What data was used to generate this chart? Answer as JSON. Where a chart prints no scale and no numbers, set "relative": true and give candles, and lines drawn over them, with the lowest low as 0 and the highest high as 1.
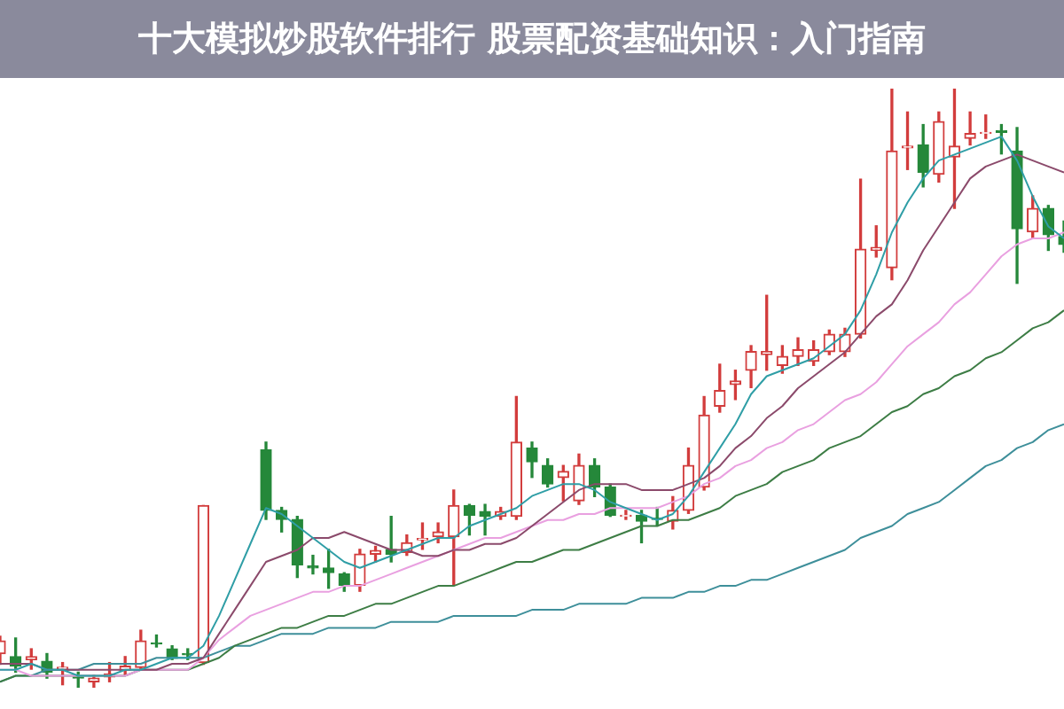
{
  "chart_data": {
    "type": "candlestick",
    "title": "十大模拟炒股软件排行 股票配资基础知识：入门指南",
    "relative": true,
    "categories": [
      null,
      null,
      null,
      null,
      null,
      null,
      null,
      null,
      null,
      null,
      null,
      null,
      null,
      null,
      null,
      null,
      null,
      null,
      null,
      null,
      null,
      null,
      null,
      null,
      null,
      null,
      null,
      null,
      null,
      null,
      null,
      null,
      null,
      null,
      null,
      null,
      null,
      null,
      null,
      null,
      null,
      null,
      null,
      null,
      null,
      null,
      null,
      null,
      null,
      null,
      null,
      null,
      null,
      null,
      null,
      null,
      null,
      null,
      null,
      null,
      null,
      null,
      null,
      null,
      null,
      null,
      null,
      null,
      null
    ],
    "ohlc": [
      [
        0.057,
        0.086,
        0.039,
        0.078
      ],
      [
        0.052,
        0.083,
        0.026,
        0.036
      ],
      [
        0.047,
        0.065,
        0.031,
        0.052
      ],
      [
        0.044,
        0.057,
        0.016,
        0.026
      ],
      [
        0.031,
        0.042,
        0.005,
        0.034
      ],
      [
        0.018,
        0.026,
        0,
        0.016
      ],
      [
        0.01,
        0.021,
        0,
        0.016
      ],
      [
        0.018,
        0.042,
        0.01,
        0.023
      ],
      [
        0.029,
        0.052,
        0.021,
        0.036
      ],
      [
        0.034,
        0.096,
        0.031,
        0.078
      ],
      [
        0.075,
        0.088,
        0.068,
        0.073
      ],
      [
        0.065,
        0.07,
        0.047,
        0.049
      ],
      [
        0.057,
        0.065,
        0.047,
        0.055
      ],
      [
        0.042,
        0.304,
        0.039,
        0.304
      ],
      null,
      null,
      null,
      [
        0.397,
        0.41,
        0.281,
        0.296
      ],
      [
        0.296,
        0.301,
        0.26,
        0.281
      ],
      [
        0.281,
        0.286,
        0.184,
        0.205
      ],
      [
        0.203,
        0.221,
        0.19,
        0.2
      ],
      [
        0.2,
        0.231,
        0.166,
        0.192
      ],
      [
        0.19,
        0.192,
        0.161,
        0.171
      ],
      [
        0.171,
        0.231,
        0.161,
        0.223
      ],
      [
        0.223,
        0.236,
        0.21,
        0.229
      ],
      [
        0.231,
        0.286,
        0.21,
        0.223
      ],
      [
        0.226,
        0.255,
        0.221,
        0.242
      ],
      [
        0.247,
        0.275,
        0.231,
        0.249
      ],
      [
        0.252,
        0.275,
        0.242,
        0.26
      ],
      [
        0.252,
        0.33,
        0.171,
        0.304
      ],
      [
        0.304,
        0.306,
        0.255,
        0.288
      ],
      [
        0.294,
        0.306,
        0.255,
        0.286
      ],
      [
        0.286,
        0.301,
        0.281,
        0.294
      ],
      [
        0.286,
        0.486,
        0.281,
        0.41
      ],
      [
        0.4,
        0.41,
        0.351,
        0.377
      ],
      [
        0.371,
        0.382,
        0.335,
        0.34
      ],
      [
        0.351,
        0.371,
        0.312,
        0.361
      ],
      [
        0.312,
        0.39,
        0.306,
        0.371
      ],
      [
        0.371,
        0.382,
        0.319,
        0.335
      ],
      [
        0.335,
        0.34,
        0.286,
        0.288
      ],
      [
        0.286,
        0.296,
        0.281,
        0.288
      ],
      [
        0.288,
        0.296,
        0.242,
        0.278
      ],
      [
        0.283,
        0.301,
        0.27,
        0.281
      ],
      [
        0.278,
        0.319,
        0.265,
        0.296
      ],
      [
        0.296,
        0.4,
        0.291,
        0.371
      ],
      [
        0.335,
        0.486,
        0.33,
        0.455
      ],
      [
        0.47,
        0.54,
        0.46,
        0.496
      ],
      [
        0.506,
        0.53,
        0.481,
        0.512
      ],
      [
        0.53,
        0.571,
        0.501,
        0.561
      ],
      [
        0.556,
        0.655,
        0.53,
        0.561
      ],
      [
        0.538,
        0.571,
        0.525,
        0.553
      ],
      [
        0.553,
        0.584,
        0.538,
        0.564
      ],
      [
        0.545,
        0.579,
        0.538,
        0.564
      ],
      [
        0.561,
        0.597,
        0.556,
        0.59
      ],
      [
        0.561,
        0.6,
        0.553,
        0.59
      ],
      [
        0.59,
        0.849,
        0.584,
        0.732
      ],
      [
        0.73,
        0.771,
        0.719,
        0.735
      ],
      [
        0.701,
        1,
        0.681,
        0.896
      ],
      [
        0.901,
        0.961,
        0.865,
        0.904
      ],
      [
        0.906,
        0.94,
        0.836,
        0.86
      ],
      [
        0.857,
        0.961,
        0.844,
        0.945
      ],
      [
        0.886,
        1,
        0.8,
        0.904
      ],
      [
        0.917,
        0.961,
        0.906,
        0.925
      ],
      [
        0.925,
        0.956,
        0.917,
        0.927
      ],
      [
        0.93,
        0.94,
        0.891,
        0.927
      ],
      [
        0.896,
        0.935,
        0.675,
        0.766
      ],
      [
        0.761,
        0.821,
        0.751,
        0.8
      ],
      [
        0.8,
        0.805,
        0.73,
        0.756
      ],
      [
        0.753,
        0.779,
        0.727,
        0.74
      ]
    ],
    "series": [
      {
        "type": "line",
        "color": "#2f9ea6",
        "values": [
          0.03,
          0.03,
          0.04,
          0.03,
          0.03,
          0.02,
          0.02,
          0.02,
          0.03,
          0.03,
          0.04,
          0.05,
          0.05,
          0.07,
          0.12,
          0.18,
          0.24,
          0.3,
          0.29,
          0.27,
          0.25,
          0.23,
          0.21,
          0.2,
          0.21,
          0.22,
          0.23,
          0.24,
          0.25,
          0.25,
          0.27,
          0.28,
          0.29,
          0.3,
          0.32,
          0.33,
          0.34,
          0.34,
          0.33,
          0.31,
          0.3,
          0.29,
          0.28,
          0.29,
          0.32,
          0.36,
          0.4,
          0.44,
          0.49,
          0.52,
          0.53,
          0.54,
          0.55,
          0.57,
          0.59,
          0.63,
          0.69,
          0.76,
          0.81,
          0.85,
          0.88,
          0.89,
          0.9,
          0.91,
          0.92,
          0.88,
          0.82,
          0.77,
          0.75
        ]
      },
      {
        "type": "line",
        "color": "#8b4a6b",
        "values": [
          0.04,
          0.04,
          0.04,
          0.03,
          0.03,
          0.03,
          0.03,
          0.03,
          0.03,
          0.03,
          0.03,
          0.04,
          0.04,
          0.05,
          0.09,
          0.13,
          0.17,
          0.21,
          0.22,
          0.23,
          0.25,
          0.25,
          0.26,
          0.25,
          0.24,
          0.23,
          0.23,
          0.22,
          0.22,
          0.23,
          0.23,
          0.24,
          0.24,
          0.25,
          0.27,
          0.29,
          0.31,
          0.33,
          0.34,
          0.34,
          0.34,
          0.33,
          0.33,
          0.33,
          0.34,
          0.35,
          0.37,
          0.4,
          0.42,
          0.45,
          0.47,
          0.5,
          0.52,
          0.54,
          0.56,
          0.59,
          0.62,
          0.64,
          0.68,
          0.73,
          0.77,
          0.81,
          0.85,
          0.87,
          0.88,
          0.89,
          0.88,
          0.87,
          0.86
        ]
      },
      {
        "type": "line",
        "color": "#e9a0e0",
        "values": [
          0.03,
          0.03,
          0.02,
          0.02,
          0.02,
          0.02,
          0.02,
          0.02,
          0.02,
          0.03,
          0.03,
          0.03,
          0.03,
          0.05,
          0.08,
          0.1,
          0.12,
          0.13,
          0.14,
          0.15,
          0.16,
          0.16,
          0.17,
          0.17,
          0.18,
          0.19,
          0.2,
          0.21,
          0.22,
          0.23,
          0.24,
          0.25,
          0.25,
          0.26,
          0.27,
          0.28,
          0.28,
          0.29,
          0.29,
          0.3,
          0.3,
          0.3,
          0.3,
          0.31,
          0.32,
          0.34,
          0.35,
          0.37,
          0.38,
          0.4,
          0.41,
          0.43,
          0.44,
          0.46,
          0.48,
          0.49,
          0.51,
          0.54,
          0.57,
          0.59,
          0.61,
          0.64,
          0.66,
          0.69,
          0.72,
          0.74,
          0.75,
          0.75,
          0.76
        ]
      },
      {
        "type": "line",
        "color": "#3d7d45",
        "values": [
          0.01,
          0.02,
          0.02,
          0.02,
          0.02,
          0.02,
          0.02,
          0.02,
          0.02,
          0.03,
          0.03,
          0.03,
          0.03,
          0.04,
          0.05,
          0.07,
          0.08,
          0.09,
          0.1,
          0.1,
          0.11,
          0.12,
          0.12,
          0.13,
          0.14,
          0.14,
          0.15,
          0.16,
          0.17,
          0.17,
          0.18,
          0.19,
          0.2,
          0.21,
          0.21,
          0.22,
          0.23,
          0.23,
          0.24,
          0.25,
          0.26,
          0.27,
          0.27,
          0.28,
          0.28,
          0.29,
          0.3,
          0.32,
          0.33,
          0.34,
          0.36,
          0.37,
          0.38,
          0.4,
          0.41,
          0.42,
          0.44,
          0.46,
          0.47,
          0.49,
          0.5,
          0.52,
          0.53,
          0.55,
          0.56,
          0.58,
          0.6,
          0.61,
          0.63
        ]
      },
      {
        "type": "line",
        "color": "#3e8f9a",
        "values": [
          0.01,
          0.02,
          0.02,
          0.03,
          0.03,
          0.03,
          0.04,
          0.04,
          0.04,
          0.04,
          0.05,
          0.05,
          0.05,
          0.05,
          0.06,
          0.07,
          0.07,
          0.08,
          0.09,
          0.09,
          0.09,
          0.1,
          0.1,
          0.1,
          0.1,
          0.11,
          0.11,
          0.11,
          0.11,
          0.12,
          0.12,
          0.12,
          0.12,
          0.12,
          0.13,
          0.13,
          0.13,
          0.14,
          0.14,
          0.14,
          0.14,
          0.15,
          0.15,
          0.15,
          0.16,
          0.16,
          0.17,
          0.17,
          0.18,
          0.18,
          0.19,
          0.2,
          0.21,
          0.22,
          0.23,
          0.25,
          0.26,
          0.27,
          0.29,
          0.3,
          0.31,
          0.33,
          0.35,
          0.37,
          0.38,
          0.4,
          0.41,
          0.43,
          0.44
        ]
      }
    ]
  }
}
